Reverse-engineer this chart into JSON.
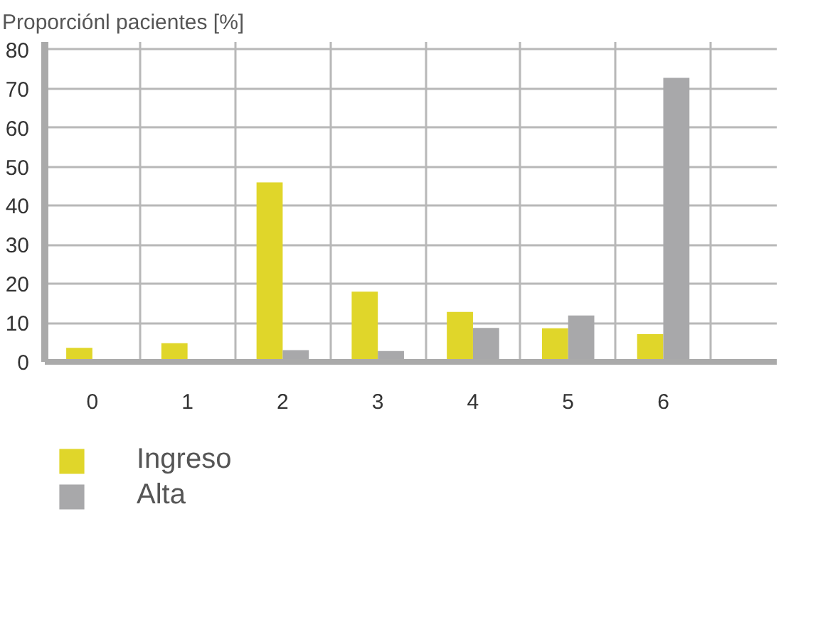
{
  "chart_data": {
    "type": "bar",
    "ylabel": "Proporciónl pacientes [%]",
    "categories": [
      "0",
      "1",
      "2",
      "3",
      "4",
      "5",
      "6"
    ],
    "series": [
      {
        "name": "Ingreso",
        "color": "#e0d62a",
        "values": [
          3.6,
          4.8,
          46,
          18,
          12.8,
          8.6,
          7.1
        ]
      },
      {
        "name": "Alta",
        "color": "#a8a8aa",
        "values": [
          0,
          0,
          3,
          2.8,
          8.7,
          11.9,
          72.8
        ]
      }
    ],
    "ylim": [
      0,
      82
    ],
    "yticks": [
      0,
      10,
      20,
      30,
      40,
      50,
      60,
      70,
      80
    ],
    "grid": true,
    "legend": "bottom"
  }
}
